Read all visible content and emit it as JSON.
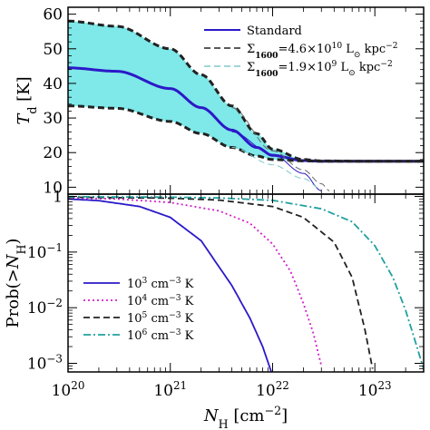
{
  "chart_data": [
    {
      "type": "line",
      "panel": "top",
      "xscale": "log",
      "xlim": [
        1e+20,
        3e+23
      ],
      "ylim": [
        8,
        62
      ],
      "ylabel_html": [
        "T",
        "d",
        " [K]"
      ],
      "yticks": [
        10,
        20,
        30,
        40,
        50,
        60
      ],
      "band": {
        "color": "#7fe8e8",
        "upper_series": "Σ1600=4.6×10^10 upper",
        "lower_series": "Σ1600=1.9×10^9 lower"
      },
      "series": [
        {
          "name": "Standard",
          "color": "#2b19c8",
          "style": "solid",
          "width": 3,
          "x": [
            1e+20,
            3e+20,
            1e+21,
            2e+21,
            4e+21,
            7e+21,
            1e+22,
            2e+22,
            3e+22,
            1e+23,
            3e+23
          ],
          "y": [
            44.5,
            43.5,
            38.5,
            33,
            26.5,
            21.5,
            19.2,
            17.7,
            17.5,
            17.5,
            17.5
          ]
        },
        {
          "name": "Standard (thin branch)",
          "color": "#2b19c8",
          "style": "solid",
          "width": 1,
          "x": [
            4e+21,
            1e+22,
            2e+22,
            3e+22
          ],
          "y": [
            26,
            19.5,
            14,
            9
          ]
        },
        {
          "name": "Σ1600=4.6×10^10 upper",
          "color": "#222222",
          "style": "dashed",
          "width": 3,
          "x": [
            1e+20,
            3e+20,
            1e+21,
            2e+21,
            4e+21,
            7e+21,
            1e+22,
            2e+22,
            3e+22,
            1e+23,
            3e+23
          ],
          "y": [
            58,
            56.5,
            50,
            42.5,
            33.5,
            25.5,
            21,
            18,
            17.6,
            17.5,
            17.5
          ]
        },
        {
          "name": "Σ1600=1.9×10^9 lower",
          "color": "#222222",
          "style": "dashed",
          "width": 3,
          "x": [
            1e+20,
            3e+20,
            1e+21,
            2e+21,
            4e+21,
            7e+21,
            1e+22,
            2e+22,
            3e+22,
            1e+23,
            3e+23
          ],
          "y": [
            33.5,
            32.8,
            29,
            25.5,
            21.5,
            19,
            18,
            17.6,
            17.5,
            17.5,
            17.5
          ]
        },
        {
          "name": "Σ1600=4.6×10^10 thin",
          "color": "#666666",
          "style": "dashed",
          "width": 1,
          "x": [
            4e+21,
            1e+22,
            2e+22,
            3e+22,
            3.6e+22
          ],
          "y": [
            33,
            20.5,
            15,
            11,
            9
          ]
        },
        {
          "name": "Σ1600=1.9×10^9 thin",
          "color": "#7fc8c8",
          "style": "dashed",
          "width": 1,
          "x": [
            4e+21,
            1e+22,
            2e+22,
            3e+22
          ],
          "y": [
            21.5,
            16.5,
            12.5,
            9.5
          ]
        }
      ],
      "legend": {
        "placement": "top-right",
        "entries": [
          {
            "label": "Standard",
            "color": "#2b19c8",
            "style": "solid"
          },
          {
            "label_parts": [
              "Σ",
              "1600",
              "=4.6×10",
              "10",
              " L",
              "⊙",
              " kpc",
              "−2"
            ],
            "color": "#222222",
            "style": "dashed"
          },
          {
            "label_parts": [
              "Σ",
              "1600",
              "=1.9×10",
              "9",
              " L",
              "⊙",
              " kpc",
              "−2"
            ],
            "color": "#7fc8c8",
            "style": "dashed"
          }
        ]
      }
    },
    {
      "type": "line",
      "panel": "bottom",
      "xscale": "log",
      "yscale": "log",
      "xlim": [
        1e+20,
        3e+23
      ],
      "ylim": [
        0.0007,
        1.1
      ],
      "xlabel_parts": [
        "N",
        "H",
        " [cm",
        "−2",
        "]"
      ],
      "ylabel_parts": [
        "Prob(>",
        "N",
        "H",
        ")"
      ],
      "xticks": [
        {
          "value": 1e+20,
          "base": "10",
          "exp": "20"
        },
        {
          "value": 1e+21,
          "base": "10",
          "exp": "21"
        },
        {
          "value": 1e+22,
          "base": "10",
          "exp": "22"
        },
        {
          "value": 1e+23,
          "base": "10",
          "exp": "23"
        }
      ],
      "yticks": [
        {
          "value": 1,
          "base": "1",
          "exp": ""
        },
        {
          "value": 0.1,
          "base": "10",
          "exp": "−1"
        },
        {
          "value": 0.01,
          "base": "10",
          "exp": "−2"
        },
        {
          "value": 0.001,
          "base": "10",
          "exp": "−3"
        }
      ],
      "series": [
        {
          "name": "10^3 cm^-3 K",
          "color": "#2b19c8",
          "style": "solid",
          "x": [
            1e+20,
            2e+20,
            5e+20,
            1e+21,
            2e+21,
            4e+21,
            6e+21,
            8e+21,
            1e+22
          ],
          "y": [
            0.9,
            0.84,
            0.66,
            0.42,
            0.16,
            0.025,
            0.0065,
            0.002,
            0.0006
          ]
        },
        {
          "name": "10^4 cm^-3 K",
          "color": "#d020c8",
          "style": "dotted",
          "x": [
            1e+20,
            3e+20,
            1e+21,
            3e+21,
            6e+21,
            1e+22,
            1.5e+22,
            2e+22,
            2.5e+22,
            3e+22
          ],
          "y": [
            0.95,
            0.9,
            0.78,
            0.55,
            0.33,
            0.14,
            0.045,
            0.012,
            0.0035,
            0.0009
          ]
        },
        {
          "name": "10^5 cm^-3 K",
          "color": "#222222",
          "style": "dashed",
          "x": [
            1e+20,
            1e+21,
            3e+21,
            1e+22,
            2e+22,
            4e+22,
            6e+22,
            8e+22,
            9.5e+22
          ],
          "y": [
            0.97,
            0.93,
            0.86,
            0.66,
            0.42,
            0.15,
            0.035,
            0.004,
            0.0008
          ]
        },
        {
          "name": "10^6 cm^-3 K",
          "color": "#20a0a0",
          "style": "dashdot",
          "x": [
            1e+20,
            1e+21,
            3e+21,
            1e+22,
            3e+22,
            6e+22,
            1e+23,
            1.5e+23,
            2e+23,
            3e+23
          ],
          "y": [
            0.99,
            0.97,
            0.94,
            0.85,
            0.6,
            0.35,
            0.13,
            0.035,
            0.009,
            0.0008
          ]
        }
      ],
      "legend": {
        "placement": "bottom-left",
        "entries": [
          {
            "base": "10",
            "exp": "3",
            "rest": " cm",
            "rexp": "−3",
            "tail": " K",
            "color": "#2b19c8",
            "style": "solid"
          },
          {
            "base": "10",
            "exp": "4",
            "rest": " cm",
            "rexp": "−3",
            "tail": " K",
            "color": "#d020c8",
            "style": "dotted"
          },
          {
            "base": "10",
            "exp": "5",
            "rest": " cm",
            "rexp": "−3",
            "tail": " K",
            "color": "#222222",
            "style": "dashed"
          },
          {
            "base": "10",
            "exp": "6",
            "rest": " cm",
            "rexp": "−3",
            "tail": " K",
            "color": "#20a0a0",
            "style": "dashdot"
          }
        ]
      }
    }
  ]
}
